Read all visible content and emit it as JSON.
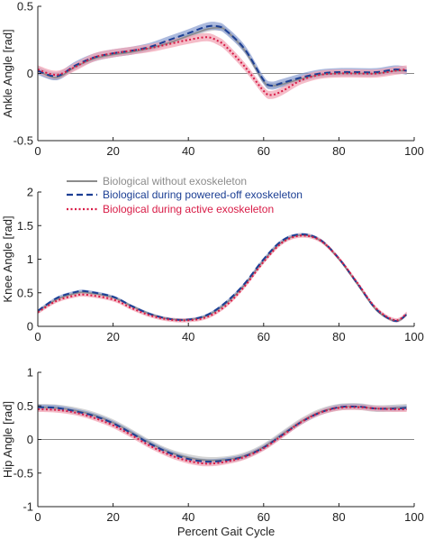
{
  "legend": {
    "items": [
      {
        "label": "Biological without exoskeleton",
        "color": "#8c8c8c",
        "style": "solid"
      },
      {
        "label": "Biological during powered-off exoskeleton",
        "color": "#1c3f94",
        "style": "dashed"
      },
      {
        "label": "Biological during active exoskeleton",
        "color": "#d81b46",
        "style": "dotted"
      }
    ]
  },
  "xlabel": "Percent Gait Cycle",
  "colors": {
    "gray": "#8c8c8c",
    "gray_band": "#b9b9b9",
    "blue": "#1c3f94",
    "blue_band": "#7f95cc",
    "red": "#d81b46",
    "red_band": "#f1a5b6",
    "axis": "#222222",
    "zero_line": "#888888"
  },
  "chart_data": [
    {
      "type": "line",
      "ylabel": "Ankle Angle [rad]",
      "xlim": [
        0,
        100
      ],
      "ylim": [
        -0.5,
        0.5
      ],
      "xticks": [
        "0",
        "20",
        "40",
        "60",
        "80",
        "100"
      ],
      "yticks": [
        "-0.5",
        "0",
        "0.5"
      ],
      "ytick_values": [
        -0.5,
        0,
        0.5
      ],
      "zero_line": true,
      "x": [
        0,
        5,
        10,
        15,
        20,
        25,
        30,
        35,
        40,
        45,
        48,
        50,
        55,
        60,
        62,
        65,
        70,
        75,
        80,
        85,
        90,
        95,
        98
      ],
      "series": [
        {
          "name": "Biological without exoskeleton",
          "band": 0.02,
          "values": [
            0.02,
            -0.03,
            0.05,
            0.11,
            0.14,
            0.16,
            0.19,
            0.23,
            0.28,
            0.33,
            0.34,
            0.32,
            0.17,
            -0.06,
            -0.09,
            -0.08,
            -0.04,
            -0.01,
            0.0,
            0.0,
            0.0,
            0.02,
            0.02
          ]
        },
        {
          "name": "Biological during powered-off exoskeleton",
          "band": 0.03,
          "values": [
            0.02,
            -0.02,
            0.06,
            0.12,
            0.15,
            0.17,
            0.2,
            0.25,
            0.3,
            0.35,
            0.35,
            0.32,
            0.18,
            -0.05,
            -0.09,
            -0.07,
            -0.03,
            0.0,
            0.01,
            0.01,
            0.01,
            0.03,
            0.02
          ]
        },
        {
          "name": "Biological during active exoskeleton",
          "band": 0.03,
          "values": [
            0.03,
            -0.01,
            0.05,
            0.12,
            0.15,
            0.17,
            0.19,
            0.22,
            0.25,
            0.27,
            0.24,
            0.2,
            0.05,
            -0.13,
            -0.16,
            -0.13,
            -0.05,
            -0.01,
            0.0,
            0.0,
            0.0,
            0.02,
            0.03
          ]
        }
      ]
    },
    {
      "type": "line",
      "ylabel": "Knee Angle [rad]",
      "xlim": [
        0,
        100
      ],
      "ylim": [
        0,
        2
      ],
      "xticks": [
        "0",
        "20",
        "40",
        "60",
        "80",
        "100"
      ],
      "yticks": [
        "0",
        "0.5",
        "1",
        "1.5",
        "2"
      ],
      "ytick_values": [
        0,
        0.5,
        1,
        1.5,
        2
      ],
      "zero_line": false,
      "x": [
        0,
        5,
        10,
        13,
        20,
        25,
        30,
        35,
        40,
        45,
        50,
        55,
        60,
        65,
        70,
        75,
        80,
        85,
        90,
        95,
        98
      ],
      "series": [
        {
          "name": "Biological without exoskeleton",
          "band": 0.02,
          "values": [
            0.22,
            0.4,
            0.49,
            0.5,
            0.43,
            0.3,
            0.18,
            0.11,
            0.1,
            0.16,
            0.34,
            0.62,
            0.98,
            1.26,
            1.36,
            1.28,
            1.0,
            0.62,
            0.24,
            0.08,
            0.17
          ]
        },
        {
          "name": "Biological during powered-off exoskeleton",
          "band": 0.02,
          "values": [
            0.23,
            0.42,
            0.51,
            0.52,
            0.44,
            0.3,
            0.18,
            0.11,
            0.1,
            0.17,
            0.36,
            0.64,
            1.0,
            1.28,
            1.37,
            1.29,
            1.01,
            0.63,
            0.25,
            0.08,
            0.18
          ]
        },
        {
          "name": "Biological during active exoskeleton",
          "band": 0.03,
          "values": [
            0.21,
            0.38,
            0.46,
            0.47,
            0.4,
            0.27,
            0.16,
            0.1,
            0.09,
            0.14,
            0.31,
            0.6,
            0.96,
            1.25,
            1.35,
            1.28,
            1.01,
            0.64,
            0.26,
            0.09,
            0.19
          ]
        }
      ]
    },
    {
      "type": "line",
      "ylabel": "Hip Angle [rad]",
      "xlim": [
        0,
        100
      ],
      "ylim": [
        -1,
        1
      ],
      "xticks": [
        "0",
        "20",
        "40",
        "60",
        "80",
        "100"
      ],
      "yticks": [
        "-1",
        "-0.5",
        "0",
        "0.5",
        "1"
      ],
      "ytick_values": [
        -1,
        -0.5,
        0,
        0.5,
        1
      ],
      "zero_line": true,
      "x": [
        0,
        5,
        10,
        15,
        20,
        25,
        30,
        35,
        40,
        45,
        50,
        55,
        60,
        65,
        70,
        75,
        80,
        85,
        90,
        95,
        98
      ],
      "series": [
        {
          "name": "Biological without exoskeleton",
          "band": 0.05,
          "values": [
            0.48,
            0.47,
            0.43,
            0.36,
            0.25,
            0.1,
            -0.06,
            -0.19,
            -0.27,
            -0.31,
            -0.3,
            -0.24,
            -0.11,
            0.08,
            0.27,
            0.41,
            0.48,
            0.49,
            0.46,
            0.47,
            0.48
          ]
        },
        {
          "name": "Biological during powered-off exoskeleton",
          "band": 0.04,
          "values": [
            0.48,
            0.47,
            0.42,
            0.35,
            0.24,
            0.09,
            -0.07,
            -0.2,
            -0.29,
            -0.33,
            -0.31,
            -0.25,
            -0.12,
            0.07,
            0.26,
            0.4,
            0.48,
            0.49,
            0.46,
            0.46,
            0.47
          ]
        },
        {
          "name": "Biological during active exoskeleton",
          "band": 0.04,
          "values": [
            0.45,
            0.44,
            0.4,
            0.32,
            0.21,
            0.06,
            -0.1,
            -0.23,
            -0.32,
            -0.36,
            -0.33,
            -0.26,
            -0.13,
            0.06,
            0.26,
            0.4,
            0.47,
            0.48,
            0.46,
            0.45,
            0.45
          ]
        }
      ]
    }
  ]
}
